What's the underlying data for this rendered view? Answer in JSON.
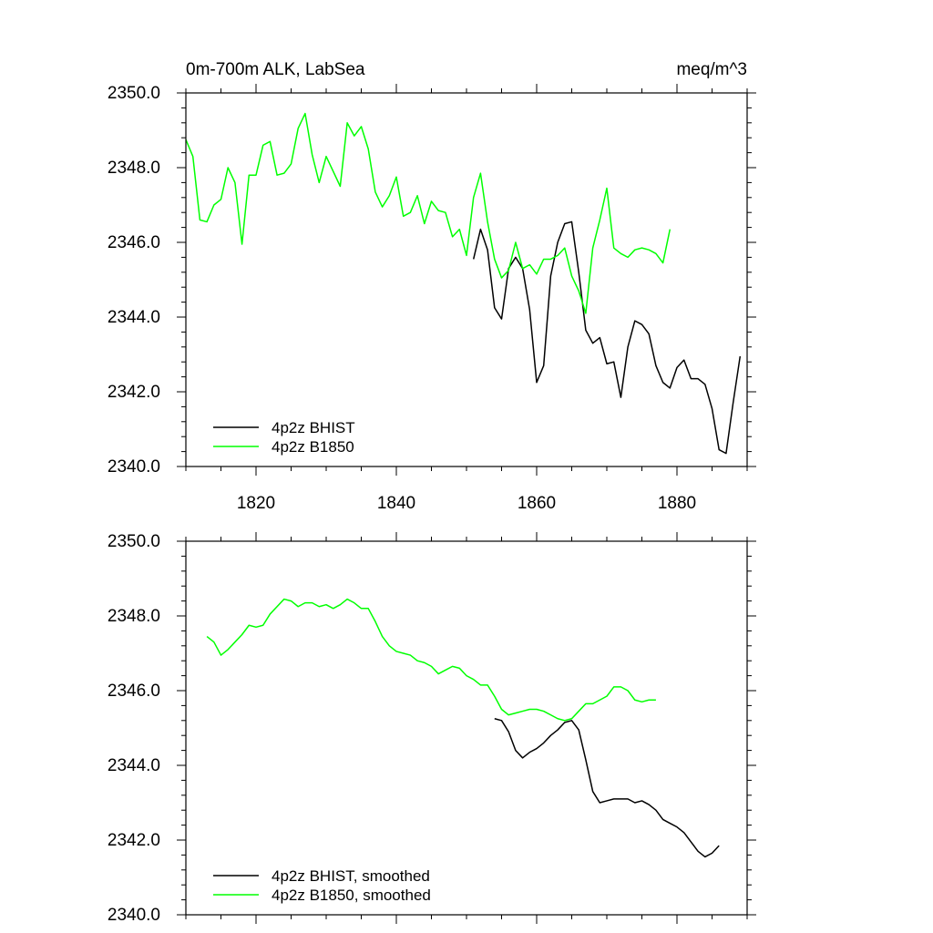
{
  "chart_data": [
    {
      "type": "line",
      "title": "0m-700m ALK, LabSea",
      "units": "meq/m^3",
      "xlim": [
        1810,
        1890
      ],
      "ylim": [
        2340,
        2350
      ],
      "xticks": [
        1820,
        1840,
        1860,
        1880
      ],
      "xtick_labels": [
        "1820",
        "1840",
        "1860",
        "1880"
      ],
      "yticks": [
        2340,
        2342,
        2344,
        2346,
        2348,
        2350
      ],
      "ytick_labels": [
        "2340.0",
        "2342.0",
        "2344.0",
        "2346.0",
        "2348.0",
        "2350.0"
      ],
      "legend_position": "bottom-left",
      "series": [
        {
          "name": "4p2z BHIST",
          "color": "#000000",
          "x": [
            1851,
            1852,
            1853,
            1854,
            1855,
            1856,
            1857,
            1858,
            1859,
            1860,
            1861,
            1862,
            1863,
            1864,
            1865,
            1866,
            1867,
            1868,
            1869,
            1870,
            1871,
            1872,
            1873,
            1874,
            1875,
            1876,
            1877,
            1878,
            1879,
            1880,
            1881,
            1882,
            1883,
            1884,
            1885,
            1886,
            1887,
            1888,
            1889
          ],
          "values": [
            2345.55,
            2346.35,
            2345.8,
            2344.25,
            2343.95,
            2345.3,
            2345.6,
            2345.3,
            2344.2,
            2342.25,
            2342.7,
            2345.1,
            2346.0,
            2346.5,
            2346.55,
            2345.2,
            2343.65,
            2343.3,
            2343.45,
            2342.75,
            2342.8,
            2341.85,
            2343.2,
            2343.9,
            2343.8,
            2343.55,
            2342.7,
            2342.25,
            2342.1,
            2342.65,
            2342.85,
            2342.35,
            2342.35,
            2342.2,
            2341.55,
            2340.45,
            2340.35,
            2341.7,
            2342.95
          ]
        },
        {
          "name": "4p2z B1850",
          "color": "#00ff00",
          "x": [
            1810,
            1811,
            1812,
            1813,
            1814,
            1815,
            1816,
            1817,
            1818,
            1819,
            1820,
            1821,
            1822,
            1823,
            1824,
            1825,
            1826,
            1827,
            1828,
            1829,
            1830,
            1831,
            1832,
            1833,
            1834,
            1835,
            1836,
            1837,
            1838,
            1839,
            1840,
            1841,
            1842,
            1843,
            1844,
            1845,
            1846,
            1847,
            1848,
            1849,
            1850,
            1851,
            1852,
            1853,
            1854,
            1855,
            1856,
            1857,
            1858,
            1859,
            1860,
            1861,
            1862,
            1863,
            1864,
            1865,
            1866,
            1867,
            1868,
            1869,
            1870,
            1871,
            1872,
            1873,
            1874,
            1875,
            1876,
            1877,
            1878,
            1879
          ],
          "values": [
            2348.75,
            2348.3,
            2346.6,
            2346.55,
            2347.0,
            2347.15,
            2348.0,
            2347.6,
            2345.95,
            2347.8,
            2347.8,
            2348.6,
            2348.7,
            2347.8,
            2347.85,
            2348.1,
            2349.05,
            2349.45,
            2348.35,
            2347.6,
            2348.3,
            2347.9,
            2347.5,
            2349.2,
            2348.85,
            2349.1,
            2348.5,
            2347.35,
            2346.95,
            2347.25,
            2347.75,
            2346.7,
            2346.8,
            2347.25,
            2346.5,
            2347.1,
            2346.85,
            2346.8,
            2346.15,
            2346.35,
            2345.65,
            2347.2,
            2347.85,
            2346.55,
            2345.55,
            2345.05,
            2345.25,
            2346.0,
            2345.3,
            2345.4,
            2345.15,
            2345.55,
            2345.55,
            2345.65,
            2345.85,
            2345.1,
            2344.7,
            2344.1,
            2345.85,
            2346.6,
            2347.45,
            2345.85,
            2345.7,
            2345.6,
            2345.8,
            2345.85,
            2345.8,
            2345.7,
            2345.45,
            2346.35
          ]
        }
      ]
    },
    {
      "type": "line",
      "title": "",
      "units": "",
      "xlim": [
        1810,
        1890
      ],
      "ylim": [
        2340,
        2350
      ],
      "xticks": [
        1820,
        1840,
        1860,
        1880
      ],
      "xtick_labels": [],
      "yticks": [
        2340,
        2342,
        2344,
        2346,
        2348,
        2350
      ],
      "ytick_labels": [
        "2340.0",
        "2342.0",
        "2344.0",
        "2346.0",
        "2348.0",
        "2350.0"
      ],
      "legend_position": "bottom-left",
      "series": [
        {
          "name": "4p2z BHIST, smoothed",
          "color": "#000000",
          "x": [
            1854,
            1855,
            1856,
            1857,
            1858,
            1859,
            1860,
            1861,
            1862,
            1863,
            1864,
            1865,
            1866,
            1867,
            1868,
            1869,
            1870,
            1871,
            1872,
            1873,
            1874,
            1875,
            1876,
            1877,
            1878,
            1879,
            1880,
            1881,
            1882,
            1883,
            1884,
            1885,
            1886
          ],
          "values": [
            2345.25,
            2345.2,
            2344.9,
            2344.4,
            2344.2,
            2344.35,
            2344.45,
            2344.6,
            2344.8,
            2344.95,
            2345.15,
            2345.2,
            2344.95,
            2344.15,
            2343.3,
            2343.0,
            2343.05,
            2343.1,
            2343.1,
            2343.1,
            2343.0,
            2343.05,
            2342.95,
            2342.8,
            2342.55,
            2342.45,
            2342.35,
            2342.2,
            2341.95,
            2341.7,
            2341.55,
            2341.65,
            2341.85
          ]
        },
        {
          "name": "4p2z B1850, smoothed",
          "color": "#00ff00",
          "x": [
            1813,
            1814,
            1815,
            1816,
            1817,
            1818,
            1819,
            1820,
            1821,
            1822,
            1823,
            1824,
            1825,
            1826,
            1827,
            1828,
            1829,
            1830,
            1831,
            1832,
            1833,
            1834,
            1835,
            1836,
            1837,
            1838,
            1839,
            1840,
            1841,
            1842,
            1843,
            1844,
            1845,
            1846,
            1847,
            1848,
            1849,
            1850,
            1851,
            1852,
            1853,
            1854,
            1855,
            1856,
            1857,
            1858,
            1859,
            1860,
            1861,
            1862,
            1863,
            1864,
            1865,
            1866,
            1867,
            1868,
            1869,
            1870,
            1871,
            1872,
            1873,
            1874,
            1875,
            1876,
            1877
          ],
          "values": [
            2347.45,
            2347.3,
            2346.95,
            2347.1,
            2347.3,
            2347.5,
            2347.75,
            2347.7,
            2347.75,
            2348.05,
            2348.25,
            2348.45,
            2348.4,
            2348.25,
            2348.35,
            2348.35,
            2348.25,
            2348.3,
            2348.2,
            2348.3,
            2348.45,
            2348.35,
            2348.2,
            2348.2,
            2347.85,
            2347.45,
            2347.2,
            2347.05,
            2347.0,
            2346.95,
            2346.8,
            2346.75,
            2346.65,
            2346.45,
            2346.55,
            2346.65,
            2346.6,
            2346.4,
            2346.3,
            2346.15,
            2346.15,
            2345.85,
            2345.5,
            2345.35,
            2345.4,
            2345.45,
            2345.5,
            2345.5,
            2345.45,
            2345.35,
            2345.25,
            2345.2,
            2345.25,
            2345.45,
            2345.65,
            2345.65,
            2345.75,
            2345.85,
            2346.1,
            2346.1,
            2346.0,
            2345.75,
            2345.7,
            2345.75,
            2345.75
          ]
        }
      ]
    }
  ]
}
